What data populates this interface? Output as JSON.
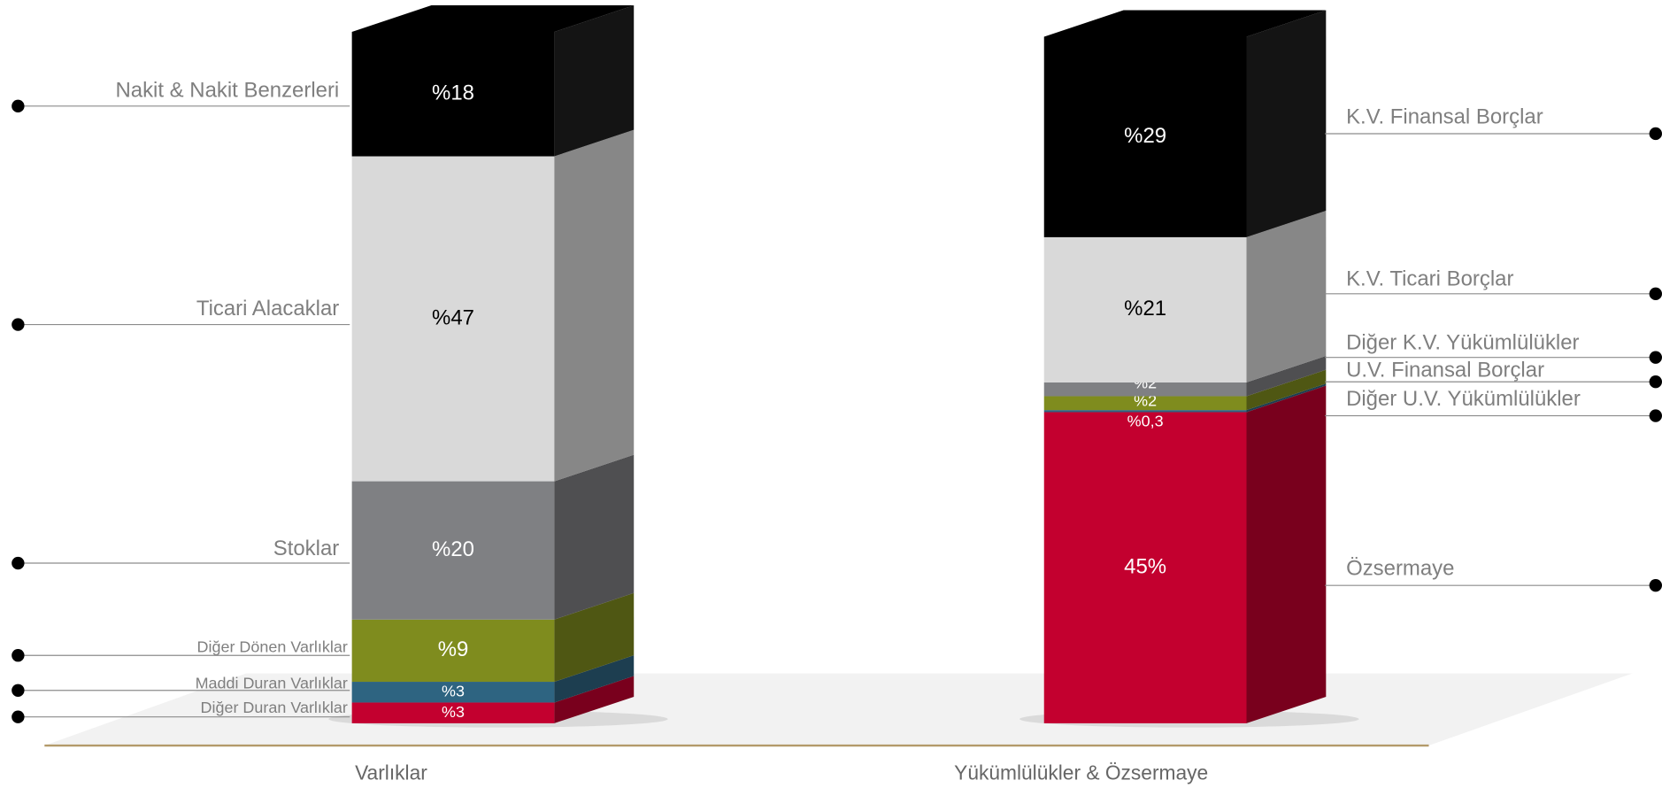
{
  "chart_data": [
    {
      "type": "bar",
      "stacked": true,
      "categories": [
        "Varlıklar"
      ],
      "series": [
        {
          "name": "Nakit & Nakit Benzerleri",
          "color": "#000000",
          "values": [
            18
          ],
          "value_labels": [
            "%18"
          ]
        },
        {
          "name": "Ticari Alacaklar",
          "color": "#d9d9d9",
          "values": [
            47
          ],
          "value_labels": [
            "%47"
          ]
        },
        {
          "name": "Stoklar",
          "color": "#7f8083",
          "values": [
            20
          ],
          "value_labels": [
            "%20"
          ]
        },
        {
          "name": "Diğer Dönen Varlıklar",
          "color": "#7f8c1e",
          "values": [
            9
          ],
          "value_labels": [
            "%9"
          ]
        },
        {
          "name": "Maddi Duran Varlıklar",
          "color": "#2e6481",
          "values": [
            3
          ],
          "value_labels": [
            "%3"
          ]
        },
        {
          "name": "Diğer Duran Varlıklar",
          "color": "#c3002f",
          "values": [
            3
          ],
          "value_labels": [
            "%3"
          ]
        }
      ]
    },
    {
      "type": "bar",
      "stacked": true,
      "categories": [
        "Yükümlülükler & Özsermaye"
      ],
      "series": [
        {
          "name": "K.V. Finansal Borçlar",
          "color": "#000000",
          "values": [
            29
          ],
          "value_labels": [
            "%29"
          ]
        },
        {
          "name": "K.V. Ticari Borçlar",
          "color": "#d9d9d9",
          "values": [
            21
          ],
          "value_labels": [
            "%21"
          ]
        },
        {
          "name": "Diğer K.V. Yükümlülükler",
          "color": "#7f8083",
          "values": [
            2
          ],
          "value_labels": [
            "%2"
          ]
        },
        {
          "name": "U.V. Finansal Borçlar",
          "color": "#7f8c1e",
          "values": [
            2
          ],
          "value_labels": [
            "%2"
          ]
        },
        {
          "name": "Diğer U.V. Yükümlülükler",
          "color": "#2e6481",
          "values": [
            0.3
          ],
          "value_labels": [
            "%0,3"
          ]
        },
        {
          "name": "Özsermaye",
          "color": "#c3002f",
          "values": [
            45
          ],
          "value_labels": [
            "45%"
          ]
        }
      ]
    }
  ]
}
